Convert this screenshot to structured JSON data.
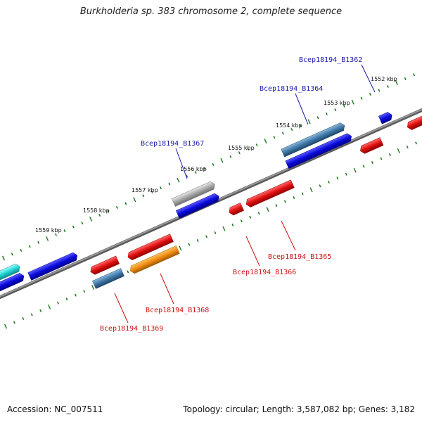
{
  "title": "Burkholderia sp. 383 chromosome 2, complete sequence",
  "footer": {
    "accession": "Accession: NC_007511",
    "topology": "Topology: circular; Length: 3,587,082 bp; Genes: 3,182"
  },
  "colors": {
    "backbone": "#7a7a7a",
    "ticks": "#1e7a1e",
    "label_forward": "#1a1aaa",
    "label_reverse": "#cc1111",
    "gene_blue": "#0a0adc",
    "gene_steel": "#3f78a8",
    "gene_gray": "#a8a8a8",
    "gene_cyan": "#20d4d4",
    "gene_red": "#e01010",
    "gene_orange": "#f08c10"
  },
  "tick_labels": [
    "1552 kbp",
    "1553 kbp",
    "1554 kbp",
    "1555 kbp",
    "1556 kbp",
    "1557 kbp",
    "1558 kbp",
    "1559 kbp"
  ],
  "gene_labels": [
    {
      "text": "Bcep18194_B1362",
      "strand": "forward"
    },
    {
      "text": "Bcep18194_B1364",
      "strand": "forward"
    },
    {
      "text": "Bcep18194_B1367",
      "strand": "forward"
    },
    {
      "text": "Bcep18194_B1365",
      "strand": "reverse"
    },
    {
      "text": "Bcep18194_B1366",
      "strand": "reverse"
    },
    {
      "text": "Bcep18194_B1368",
      "strand": "reverse"
    },
    {
      "text": "Bcep18194_B1369",
      "strand": "reverse"
    }
  ]
}
